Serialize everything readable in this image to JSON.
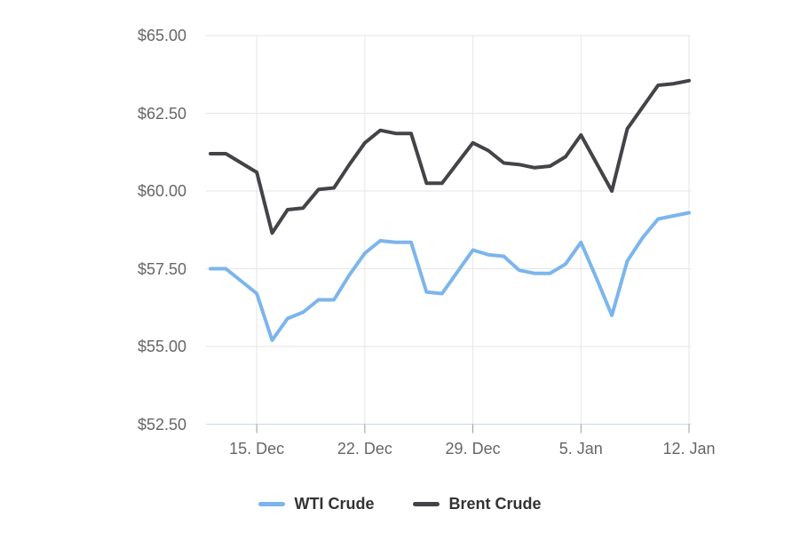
{
  "chart_data": {
    "type": "line",
    "title": "",
    "xlabel": "",
    "ylabel": "",
    "x": [
      "12. Dec",
      "13. Dec",
      "14. Dec",
      "15. Dec",
      "16. Dec",
      "17. Dec",
      "18. Dec",
      "19. Dec",
      "20. Dec",
      "21. Dec",
      "22. Dec",
      "23. Dec",
      "24. Dec",
      "25. Dec",
      "26. Dec",
      "27. Dec",
      "28. Dec",
      "29. Dec",
      "30. Dec",
      "31. Dec",
      "1. Jan",
      "2. Jan",
      "3. Jan",
      "4. Jan",
      "5. Jan",
      "6. Jan",
      "7. Jan",
      "8. Jan",
      "9. Jan",
      "10. Jan",
      "11. Jan",
      "12. Jan"
    ],
    "x_tick_labels": [
      "15. Dec",
      "22. Dec",
      "29. Dec",
      "5. Jan",
      "12. Jan"
    ],
    "x_tick_indices": [
      3,
      10,
      17,
      24,
      31
    ],
    "y_ticks": [
      65,
      62.5,
      60,
      57.5,
      55,
      52.5
    ],
    "y_tick_labels": [
      "$65.00",
      "$62.50",
      "$60.00",
      "$57.50",
      "$55.00",
      "$52.50"
    ],
    "ylim": [
      52.5,
      65
    ],
    "grid": true,
    "legend_position": "bottom",
    "series": [
      {
        "name": "WTI Crude",
        "color": "#7cb5ec",
        "values": [
          57.5,
          57.5,
          57.1,
          56.7,
          55.2,
          55.9,
          56.1,
          56.5,
          56.5,
          57.3,
          58.0,
          58.4,
          58.35,
          58.35,
          56.75,
          56.7,
          57.4,
          58.1,
          57.95,
          57.9,
          57.45,
          57.35,
          57.35,
          57.65,
          58.35,
          57.2,
          56.0,
          57.75,
          58.5,
          59.1,
          59.2,
          59.3
        ]
      },
      {
        "name": "Brent Crude",
        "color": "#434348",
        "values": [
          61.2,
          61.2,
          60.9,
          60.6,
          58.65,
          59.4,
          59.45,
          60.05,
          60.1,
          60.85,
          61.55,
          61.95,
          61.85,
          61.85,
          60.25,
          60.25,
          60.9,
          61.55,
          61.3,
          60.9,
          60.85,
          60.75,
          60.8,
          61.1,
          61.8,
          60.9,
          60.0,
          62.0,
          62.7,
          63.4,
          63.45,
          63.55
        ]
      }
    ],
    "colors": {
      "grid": "#e6e6e6",
      "axis_line": "#ccd6eb",
      "tick": "#999999",
      "axis_label": "#666666",
      "legend_text": "#333333",
      "background": "#ffffff"
    }
  }
}
